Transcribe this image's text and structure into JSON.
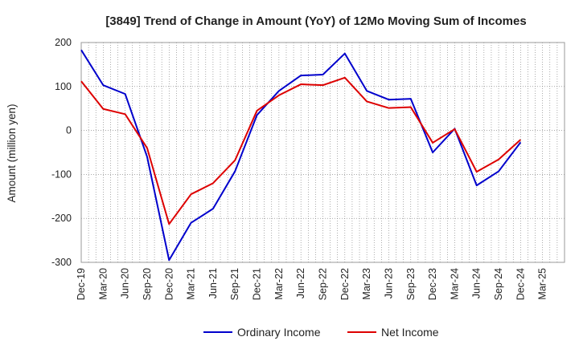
{
  "chart_data": {
    "type": "line",
    "title": "[3849]  Trend of Change in Amount (YoY) of 12Mo Moving Sum of Incomes",
    "xlabel": "",
    "ylabel": "Amount (million yen)",
    "ylim": [
      -300,
      200
    ],
    "yticks": [
      200,
      100,
      0,
      -100,
      -200,
      -300
    ],
    "categories": [
      "Dec-19",
      "Mar-20",
      "Jun-20",
      "Sep-20",
      "Dec-20",
      "Mar-21",
      "Jun-21",
      "Sep-21",
      "Dec-21",
      "Mar-22",
      "Jun-22",
      "Sep-22",
      "Dec-22",
      "Mar-23",
      "Jun-23",
      "Sep-23",
      "Dec-23",
      "Mar-24",
      "Jun-24",
      "Sep-24",
      "Dec-24",
      "Mar-25"
    ],
    "x_tick_labels": [
      "Dec-19",
      "Mar-20",
      "Jun-20",
      "Sep-20",
      "Dec-20",
      "Mar-21",
      "Jun-21",
      "Sep-21",
      "Dec-21",
      "Mar-22",
      "Jun-22",
      "Sep-22",
      "Dec-22",
      "Mar-23",
      "Jun-23",
      "Sep-23",
      "Dec-23",
      "Mar-24",
      "Jun-24",
      "Sep-24",
      "Dec-24",
      "Mar-25"
    ],
    "grid": true,
    "legend_position": "bottom",
    "series": [
      {
        "name": "Ordinary Income",
        "color": "#0000cc",
        "values": [
          183,
          103,
          83,
          -60,
          -295,
          -210,
          -178,
          -93,
          35,
          90,
          125,
          127,
          175,
          90,
          70,
          72,
          -50,
          4,
          -125,
          -93,
          -27,
          null
        ]
      },
      {
        "name": "Net Income",
        "color": "#dd0000",
        "values": [
          112,
          49,
          37,
          -40,
          -213,
          -145,
          -120,
          -68,
          45,
          80,
          105,
          103,
          120,
          66,
          51,
          53,
          -28,
          3,
          -94,
          -66,
          -21,
          null
        ]
      }
    ]
  }
}
